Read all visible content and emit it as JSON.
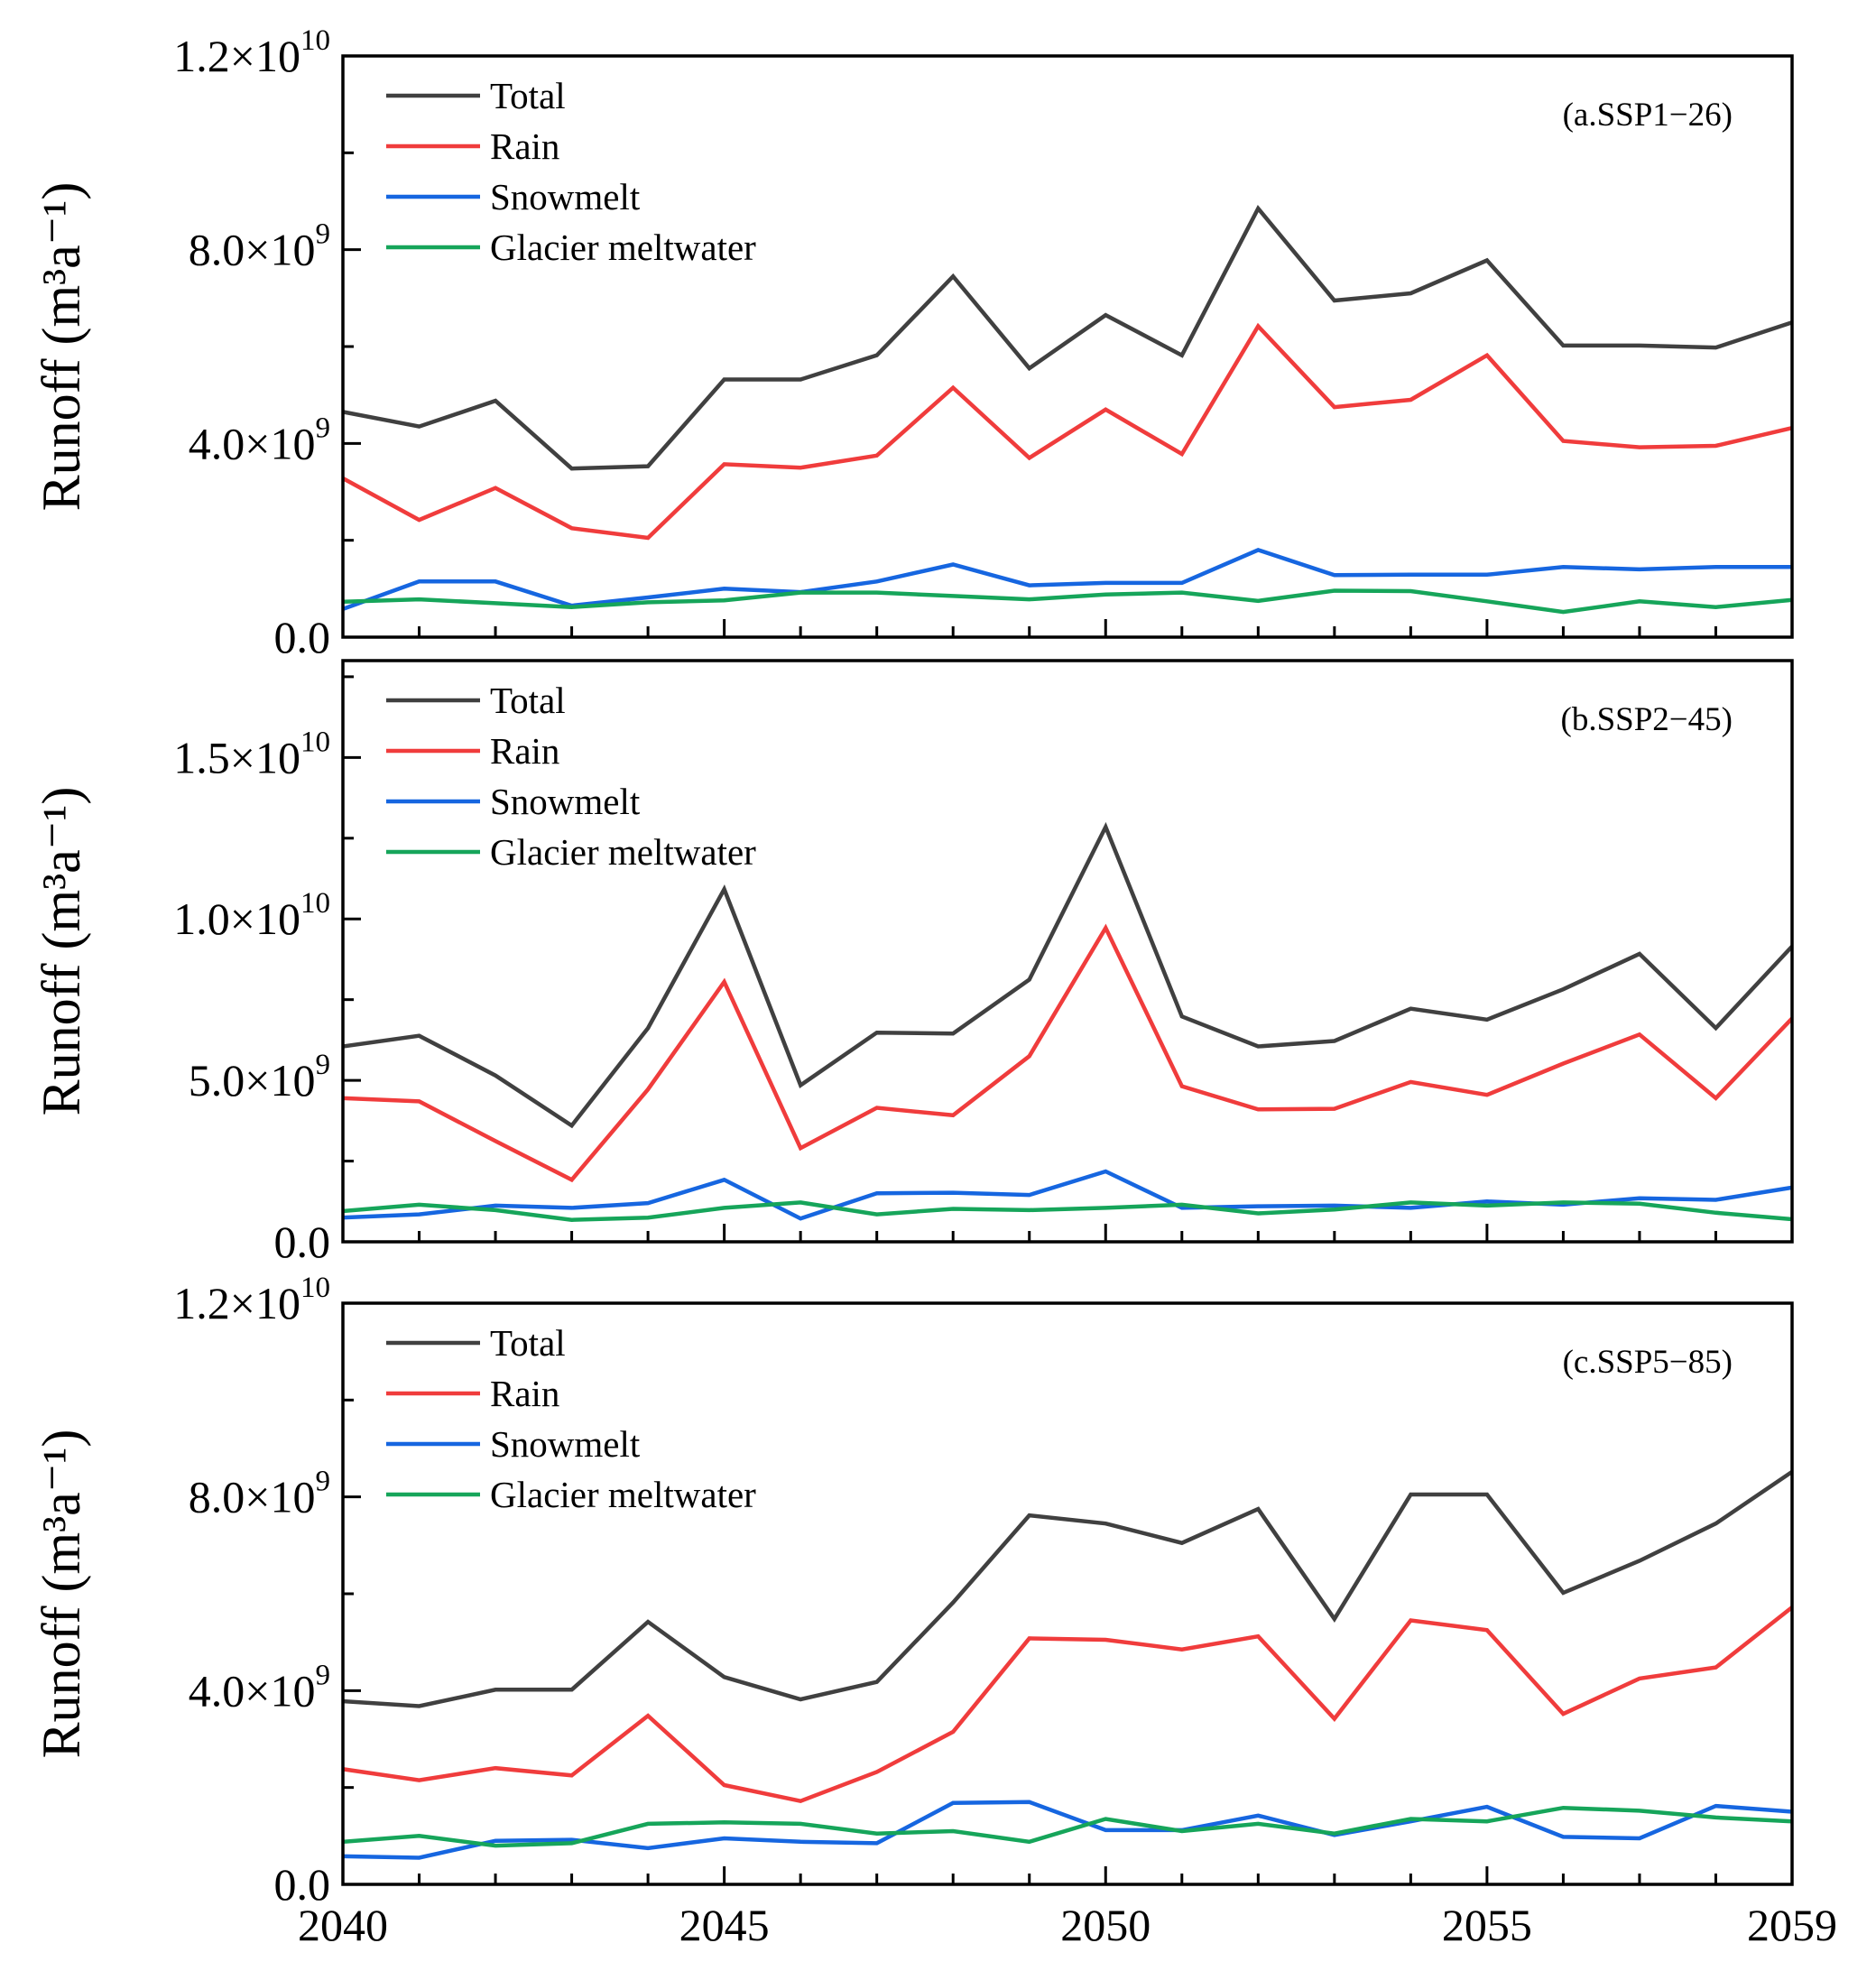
{
  "figure": {
    "x_tick_labels": [
      "2040",
      "2045",
      "2050",
      "2055",
      "2059"
    ]
  },
  "chart_data": [
    {
      "type": "line",
      "id": "panel-a",
      "annotation": "(a.SSP1−26)",
      "ylabel": "Runoff (m³a⁻¹)",
      "x": [
        2040,
        2041,
        2042,
        2043,
        2044,
        2045,
        2046,
        2047,
        2048,
        2049,
        2050,
        2051,
        2052,
        2053,
        2054,
        2055,
        2056,
        2057,
        2058,
        2059
      ],
      "xlim": [
        2040,
        2059
      ],
      "ylim": [
        0,
        12000000000
      ],
      "yticks": [
        0,
        4000000000,
        8000000000,
        12000000000
      ],
      "ytick_labels": [
        {
          "m": "0.0",
          "e": ""
        },
        {
          "m": "4.0×10",
          "e": "9"
        },
        {
          "m": "8.0×10",
          "e": "9"
        },
        {
          "m": "1.2×10",
          "e": "10"
        }
      ],
      "legend_location": "top-left",
      "series": [
        {
          "name": "Total",
          "color": "#404040",
          "values": [
            4650000000.0,
            4350000000.0,
            4880000000.0,
            3480000000.0,
            3530000000.0,
            5320000000.0,
            5320000000.0,
            5820000000.0,
            7450000000.0,
            5550000000.0,
            6650000000.0,
            5820000000.0,
            8850000000.0,
            6950000000.0,
            7100000000.0,
            7780000000.0,
            6020000000.0,
            6020000000.0,
            5980000000.0,
            6500000000.0
          ]
        },
        {
          "name": "Rain",
          "color": "#f03c3c",
          "values": [
            3280000000.0,
            2420000000.0,
            3080000000.0,
            2250000000.0,
            2050000000.0,
            3570000000.0,
            3500000000.0,
            3750000000.0,
            5150000000.0,
            3700000000.0,
            4700000000.0,
            3780000000.0,
            6420000000.0,
            4750000000.0,
            4900000000.0,
            5820000000.0,
            4050000000.0,
            3920000000.0,
            3950000000.0,
            4320000000.0
          ]
        },
        {
          "name": "Snowmelt",
          "color": "#1666e0",
          "values": [
            580000000.0,
            1150000000.0,
            1150000000.0,
            650000000.0,
            820000000.0,
            1000000000.0,
            930000000.0,
            1150000000.0,
            1500000000.0,
            1070000000.0,
            1120000000.0,
            1120000000.0,
            1800000000.0,
            1280000000.0,
            1290000000.0,
            1290000000.0,
            1450000000.0,
            1400000000.0,
            1450000000.0,
            1450000000.0
          ]
        },
        {
          "name": "Glacier meltwater",
          "color": "#16a55a",
          "values": [
            730000000.0,
            780000000.0,
            700000000.0,
            620000000.0,
            720000000.0,
            760000000.0,
            920000000.0,
            920000000.0,
            850000000.0,
            780000000.0,
            880000000.0,
            920000000.0,
            750000000.0,
            960000000.0,
            950000000.0,
            740000000.0,
            520000000.0,
            740000000.0,
            620000000.0,
            770000000.0
          ]
        }
      ]
    },
    {
      "type": "line",
      "id": "panel-b",
      "annotation": "(b.SSP2−45)",
      "ylabel": "Runoff (m³a⁻¹)",
      "x": [
        2040,
        2041,
        2042,
        2043,
        2044,
        2045,
        2046,
        2047,
        2048,
        2049,
        2050,
        2051,
        2052,
        2053,
        2054,
        2055,
        2056,
        2057,
        2058,
        2059
      ],
      "xlim": [
        2040,
        2059
      ],
      "ylim": [
        0,
        18000000000
      ],
      "yticks": [
        0,
        5000000000,
        10000000000,
        15000000000
      ],
      "ytick_labels": [
        {
          "m": "0.0",
          "e": ""
        },
        {
          "m": "5.0×10",
          "e": "9"
        },
        {
          "m": "1.0×10",
          "e": "10"
        },
        {
          "m": "1.5×10",
          "e": "10"
        }
      ],
      "legend_location": "top-left",
      "series": [
        {
          "name": "Total",
          "color": "#404040",
          "values": [
            6050000000.0,
            6380000000.0,
            5150000000.0,
            3600000000.0,
            6620000000.0,
            10920000000.0,
            4850000000.0,
            6480000000.0,
            6450000000.0,
            8120000000.0,
            12850000000.0,
            6980000000.0,
            6050000000.0,
            6220000000.0,
            7220000000.0,
            6880000000.0,
            7820000000.0,
            8920000000.0,
            6620000000.0,
            9150000000.0
          ]
        },
        {
          "name": "Rain",
          "color": "#f03c3c",
          "values": [
            4450000000.0,
            4350000000.0,
            3120000000.0,
            1920000000.0,
            4720000000.0,
            8050000000.0,
            2900000000.0,
            4150000000.0,
            3920000000.0,
            5750000000.0,
            9720000000.0,
            4820000000.0,
            4100000000.0,
            4120000000.0,
            4950000000.0,
            4550000000.0,
            5520000000.0,
            6420000000.0,
            4450000000.0,
            6920000000.0
          ]
        },
        {
          "name": "Snowmelt",
          "color": "#1666e0",
          "values": [
            750000000.0,
            850000000.0,
            1120000000.0,
            1050000000.0,
            1200000000.0,
            1920000000.0,
            720000000.0,
            1500000000.0,
            1520000000.0,
            1450000000.0,
            2180000000.0,
            1050000000.0,
            1100000000.0,
            1120000000.0,
            1050000000.0,
            1250000000.0,
            1150000000.0,
            1350000000.0,
            1300000000.0,
            1680000000.0
          ]
        },
        {
          "name": "Glacier meltwater",
          "color": "#16a55a",
          "values": [
            950000000.0,
            1150000000.0,
            980000000.0,
            680000000.0,
            750000000.0,
            1050000000.0,
            1220000000.0,
            850000000.0,
            1020000000.0,
            980000000.0,
            1050000000.0,
            1150000000.0,
            880000000.0,
            1000000000.0,
            1220000000.0,
            1120000000.0,
            1220000000.0,
            1180000000.0,
            900000000.0,
            700000000.0
          ]
        }
      ]
    },
    {
      "type": "line",
      "id": "panel-c",
      "annotation": "(c.SSP5−85)",
      "ylabel": "Runoff (m³a⁻¹)",
      "x": [
        2040,
        2041,
        2042,
        2043,
        2044,
        2045,
        2046,
        2047,
        2048,
        2049,
        2050,
        2051,
        2052,
        2053,
        2054,
        2055,
        2056,
        2057,
        2058,
        2059
      ],
      "xlim": [
        2040,
        2059
      ],
      "ylim": [
        0,
        12000000000
      ],
      "yticks": [
        0,
        4000000000,
        8000000000,
        12000000000
      ],
      "ytick_labels": [
        {
          "m": "0.0",
          "e": ""
        },
        {
          "m": "4.0×10",
          "e": "9"
        },
        {
          "m": "8.0×10",
          "e": "9"
        },
        {
          "m": "1.2×10",
          "e": "10"
        }
      ],
      "legend_location": "top-left",
      "series": [
        {
          "name": "Total",
          "color": "#404040",
          "values": [
            3780000000.0,
            3680000000.0,
            4020000000.0,
            4020000000.0,
            5420000000.0,
            4280000000.0,
            3820000000.0,
            4180000000.0,
            5820000000.0,
            7620000000.0,
            7450000000.0,
            7050000000.0,
            7750000000.0,
            5480000000.0,
            8050000000.0,
            8050000000.0,
            6020000000.0,
            6680000000.0,
            7450000000.0,
            8520000000.0
          ]
        },
        {
          "name": "Rain",
          "color": "#f03c3c",
          "values": [
            2380000000.0,
            2150000000.0,
            2400000000.0,
            2250000000.0,
            3480000000.0,
            2050000000.0,
            1720000000.0,
            2320000000.0,
            3150000000.0,
            5080000000.0,
            5050000000.0,
            4850000000.0,
            5120000000.0,
            3420000000.0,
            5450000000.0,
            5250000000.0,
            3520000000.0,
            4250000000.0,
            4480000000.0,
            5720000000.0
          ]
        },
        {
          "name": "Snowmelt",
          "color": "#1666e0",
          "values": [
            580000000.0,
            550000000.0,
            900000000.0,
            920000000.0,
            750000000.0,
            950000000.0,
            880000000.0,
            850000000.0,
            1680000000.0,
            1700000000.0,
            1120000000.0,
            1120000000.0,
            1420000000.0,
            1020000000.0,
            1300000000.0,
            1600000000.0,
            980000000.0,
            950000000.0,
            1620000000.0,
            1500000000.0
          ]
        },
        {
          "name": "Glacier meltwater",
          "color": "#16a55a",
          "values": [
            880000000.0,
            1000000000.0,
            800000000.0,
            850000000.0,
            1250000000.0,
            1280000000.0,
            1250000000.0,
            1050000000.0,
            1100000000.0,
            880000000.0,
            1350000000.0,
            1100000000.0,
            1250000000.0,
            1050000000.0,
            1350000000.0,
            1300000000.0,
            1580000000.0,
            1520000000.0,
            1380000000.0,
            1300000000.0
          ]
        }
      ]
    }
  ]
}
